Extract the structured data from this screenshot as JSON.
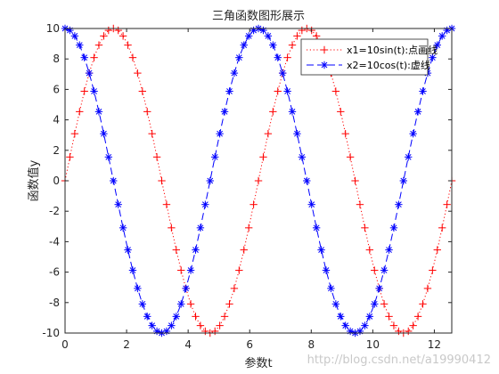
{
  "chart_data": {
    "type": "line",
    "title": "三角函数图形展示",
    "xlabel": "参数t",
    "ylabel": "函数值y",
    "xlim": [
      0,
      12.5664
    ],
    "ylim": [
      -10,
      10
    ],
    "xticks": [
      "0",
      "2",
      "4",
      "6",
      "8",
      "10",
      "12"
    ],
    "yticks": [
      "-10",
      "-8",
      "-6",
      "-4",
      "-2",
      "0",
      "2",
      "4",
      "6",
      "8",
      "10"
    ],
    "grid": false,
    "legend_position": "top-right",
    "x_start": 0,
    "x_step": 0.1571,
    "series": [
      {
        "name": "x1=10sin(t):点画线",
        "color": "#ff0000",
        "line_style": "dotted",
        "marker": "plus",
        "values": [
          0.0,
          1.56,
          3.09,
          4.54,
          5.88,
          7.07,
          8.09,
          8.91,
          9.51,
          9.88,
          10.0,
          9.88,
          9.51,
          8.91,
          8.09,
          7.07,
          5.88,
          4.54,
          3.09,
          1.56,
          0.0,
          -1.56,
          -3.09,
          -4.54,
          -5.88,
          -7.07,
          -8.09,
          -8.91,
          -9.51,
          -9.88,
          -10.0,
          -9.88,
          -9.51,
          -8.91,
          -8.09,
          -7.07,
          -5.88,
          -4.54,
          -3.09,
          -1.56,
          0.0,
          1.56,
          3.09,
          4.54,
          5.88,
          7.07,
          8.09,
          8.91,
          9.51,
          9.88,
          10.0,
          9.88,
          9.51,
          8.91,
          8.09,
          7.07,
          5.88,
          4.54,
          3.09,
          1.56,
          0.0,
          -1.56,
          -3.09,
          -4.54,
          -5.88,
          -7.07,
          -8.09,
          -8.91,
          -9.51,
          -9.88,
          -10.0,
          -9.88,
          -9.51,
          -8.91,
          -8.09,
          -7.07,
          -5.88,
          -4.54,
          -3.09,
          -1.56,
          0.0
        ]
      },
      {
        "name": "x2=10cos(t):虚线",
        "color": "#0000ff",
        "line_style": "dashed",
        "marker": "asterisk",
        "values": [
          10.0,
          9.88,
          9.51,
          8.91,
          8.09,
          7.07,
          5.88,
          4.54,
          3.09,
          1.56,
          0.0,
          -1.56,
          -3.09,
          -4.54,
          -5.88,
          -7.07,
          -8.09,
          -8.91,
          -9.51,
          -9.88,
          -10.0,
          -9.88,
          -9.51,
          -8.91,
          -8.09,
          -7.07,
          -5.88,
          -4.54,
          -3.09,
          -1.56,
          0.0,
          1.56,
          3.09,
          4.54,
          5.88,
          7.07,
          8.09,
          8.91,
          9.51,
          9.88,
          10.0,
          9.88,
          9.51,
          8.91,
          8.09,
          7.07,
          5.88,
          4.54,
          3.09,
          1.56,
          0.0,
          -1.56,
          -3.09,
          -4.54,
          -5.88,
          -7.07,
          -8.09,
          -8.91,
          -9.51,
          -9.88,
          -10.0,
          -9.88,
          -9.51,
          -8.91,
          -8.09,
          -7.07,
          -5.88,
          -4.54,
          -3.09,
          -1.56,
          0.0,
          1.56,
          3.09,
          4.54,
          5.88,
          7.07,
          8.09,
          8.91,
          9.51,
          9.88,
          10.0
        ]
      }
    ]
  },
  "watermark": "http://blog.csdn.net/a19990412"
}
